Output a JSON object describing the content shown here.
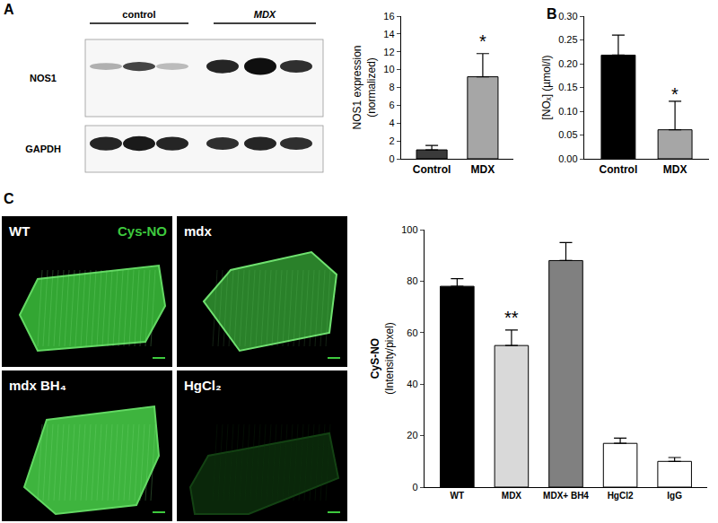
{
  "chart_data": [
    {
      "type": "bar",
      "panel": "A",
      "ylabel": "NOS1 expression\n(normalized)",
      "categories": [
        "Control",
        "MDX"
      ],
      "values": [
        1.0,
        9.2
      ],
      "errors": [
        0.5,
        2.6
      ],
      "colors": [
        "#3a3a3a",
        "#a6a6a6"
      ],
      "ylim": [
        0,
        16
      ],
      "yticks": [
        0,
        2,
        4,
        6,
        8,
        10,
        12,
        14,
        16
      ],
      "annotations": [
        {
          "category": "MDX",
          "y": 13.2,
          "text": "*"
        }
      ]
    },
    {
      "type": "bar",
      "panel": "B",
      "ylabel": "[NOₓ] (µmol/l)",
      "categories": [
        "Control",
        "MDX"
      ],
      "values": [
        0.218,
        0.061
      ],
      "errors": [
        0.042,
        0.06
      ],
      "colors": [
        "#000000",
        "#a6a6a6"
      ],
      "ylim": [
        0,
        0.3
      ],
      "yticks": [
        {
          "value": 0,
          "label": "0.00"
        },
        {
          "value": 0.05,
          "label": "0.05"
        },
        {
          "value": 0.1,
          "label": "0.10"
        },
        {
          "value": 0.15,
          "label": "0.15"
        },
        {
          "value": 0.2,
          "label": "0.20"
        },
        {
          "value": 0.25,
          "label": "0.25"
        },
        {
          "value": 0.3,
          "label": "0.30"
        }
      ],
      "annotations": [
        {
          "category": "MDX",
          "y": 0.135,
          "text": "*"
        }
      ]
    },
    {
      "type": "bar",
      "panel": "C",
      "ylabel": "CyS-NO\n(Intensity/pixel)",
      "categories": [
        "WT",
        "MDX",
        "MDX+ BH4",
        "HgCl2",
        "IgG"
      ],
      "values": [
        78,
        55,
        88,
        17,
        10
      ],
      "errors": [
        3,
        6,
        7,
        2,
        1.5
      ],
      "colors": [
        "#000000",
        "#d9d9d9",
        "#808080",
        "#ffffff",
        "#ffffff"
      ],
      "ylim": [
        0,
        100
      ],
      "yticks": [
        0,
        20,
        40,
        60,
        80,
        100
      ],
      "annotations": [
        {
          "category": "MDX",
          "y": 66,
          "text": "**"
        }
      ]
    }
  ],
  "figure": {
    "blot": {
      "panel": "A",
      "groups": [
        "control",
        "MDX"
      ],
      "rows": [
        "NOS1",
        "GAPDH"
      ]
    },
    "micrographs": {
      "panel": "C",
      "stain": "Cys-NO",
      "images": [
        "WT",
        "mdx",
        "mdx BH₄",
        "HgCl₂"
      ]
    }
  }
}
